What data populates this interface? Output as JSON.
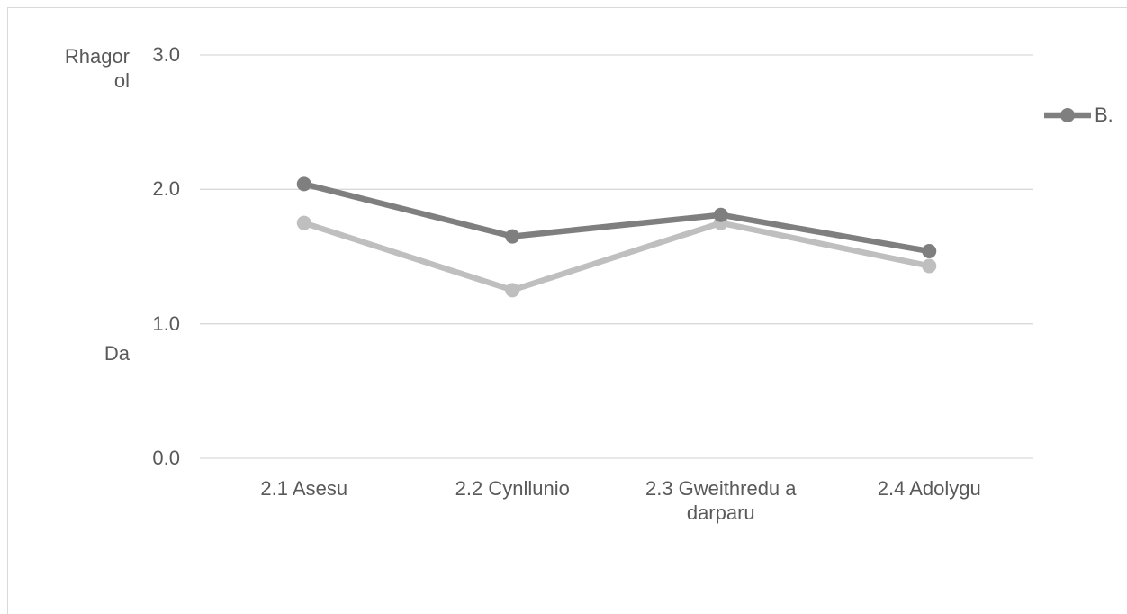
{
  "chart_data": {
    "type": "line",
    "categories": [
      "2.1 Asesu",
      "2.2 Cynllunio",
      "2.3 Gweithredu a darparu",
      "2.4 Adolygu"
    ],
    "series": [
      {
        "name": "B.",
        "color": "#7f7f7f",
        "values": [
          2.04,
          1.65,
          1.81,
          1.54
        ]
      },
      {
        "color": "#bfbfbf",
        "values": [
          1.75,
          1.25,
          1.75,
          1.43
        ]
      }
    ],
    "ylim": [
      0,
      3
    ],
    "yticks": [
      {
        "value": 0,
        "label": "0.0"
      },
      {
        "value": 1,
        "label": "1.0"
      },
      {
        "value": 2,
        "label": "2.0"
      },
      {
        "value": 3,
        "label": "3.0"
      }
    ],
    "annotations": [
      "Rhagorol",
      "Da"
    ],
    "grid": true,
    "legend": "right"
  }
}
